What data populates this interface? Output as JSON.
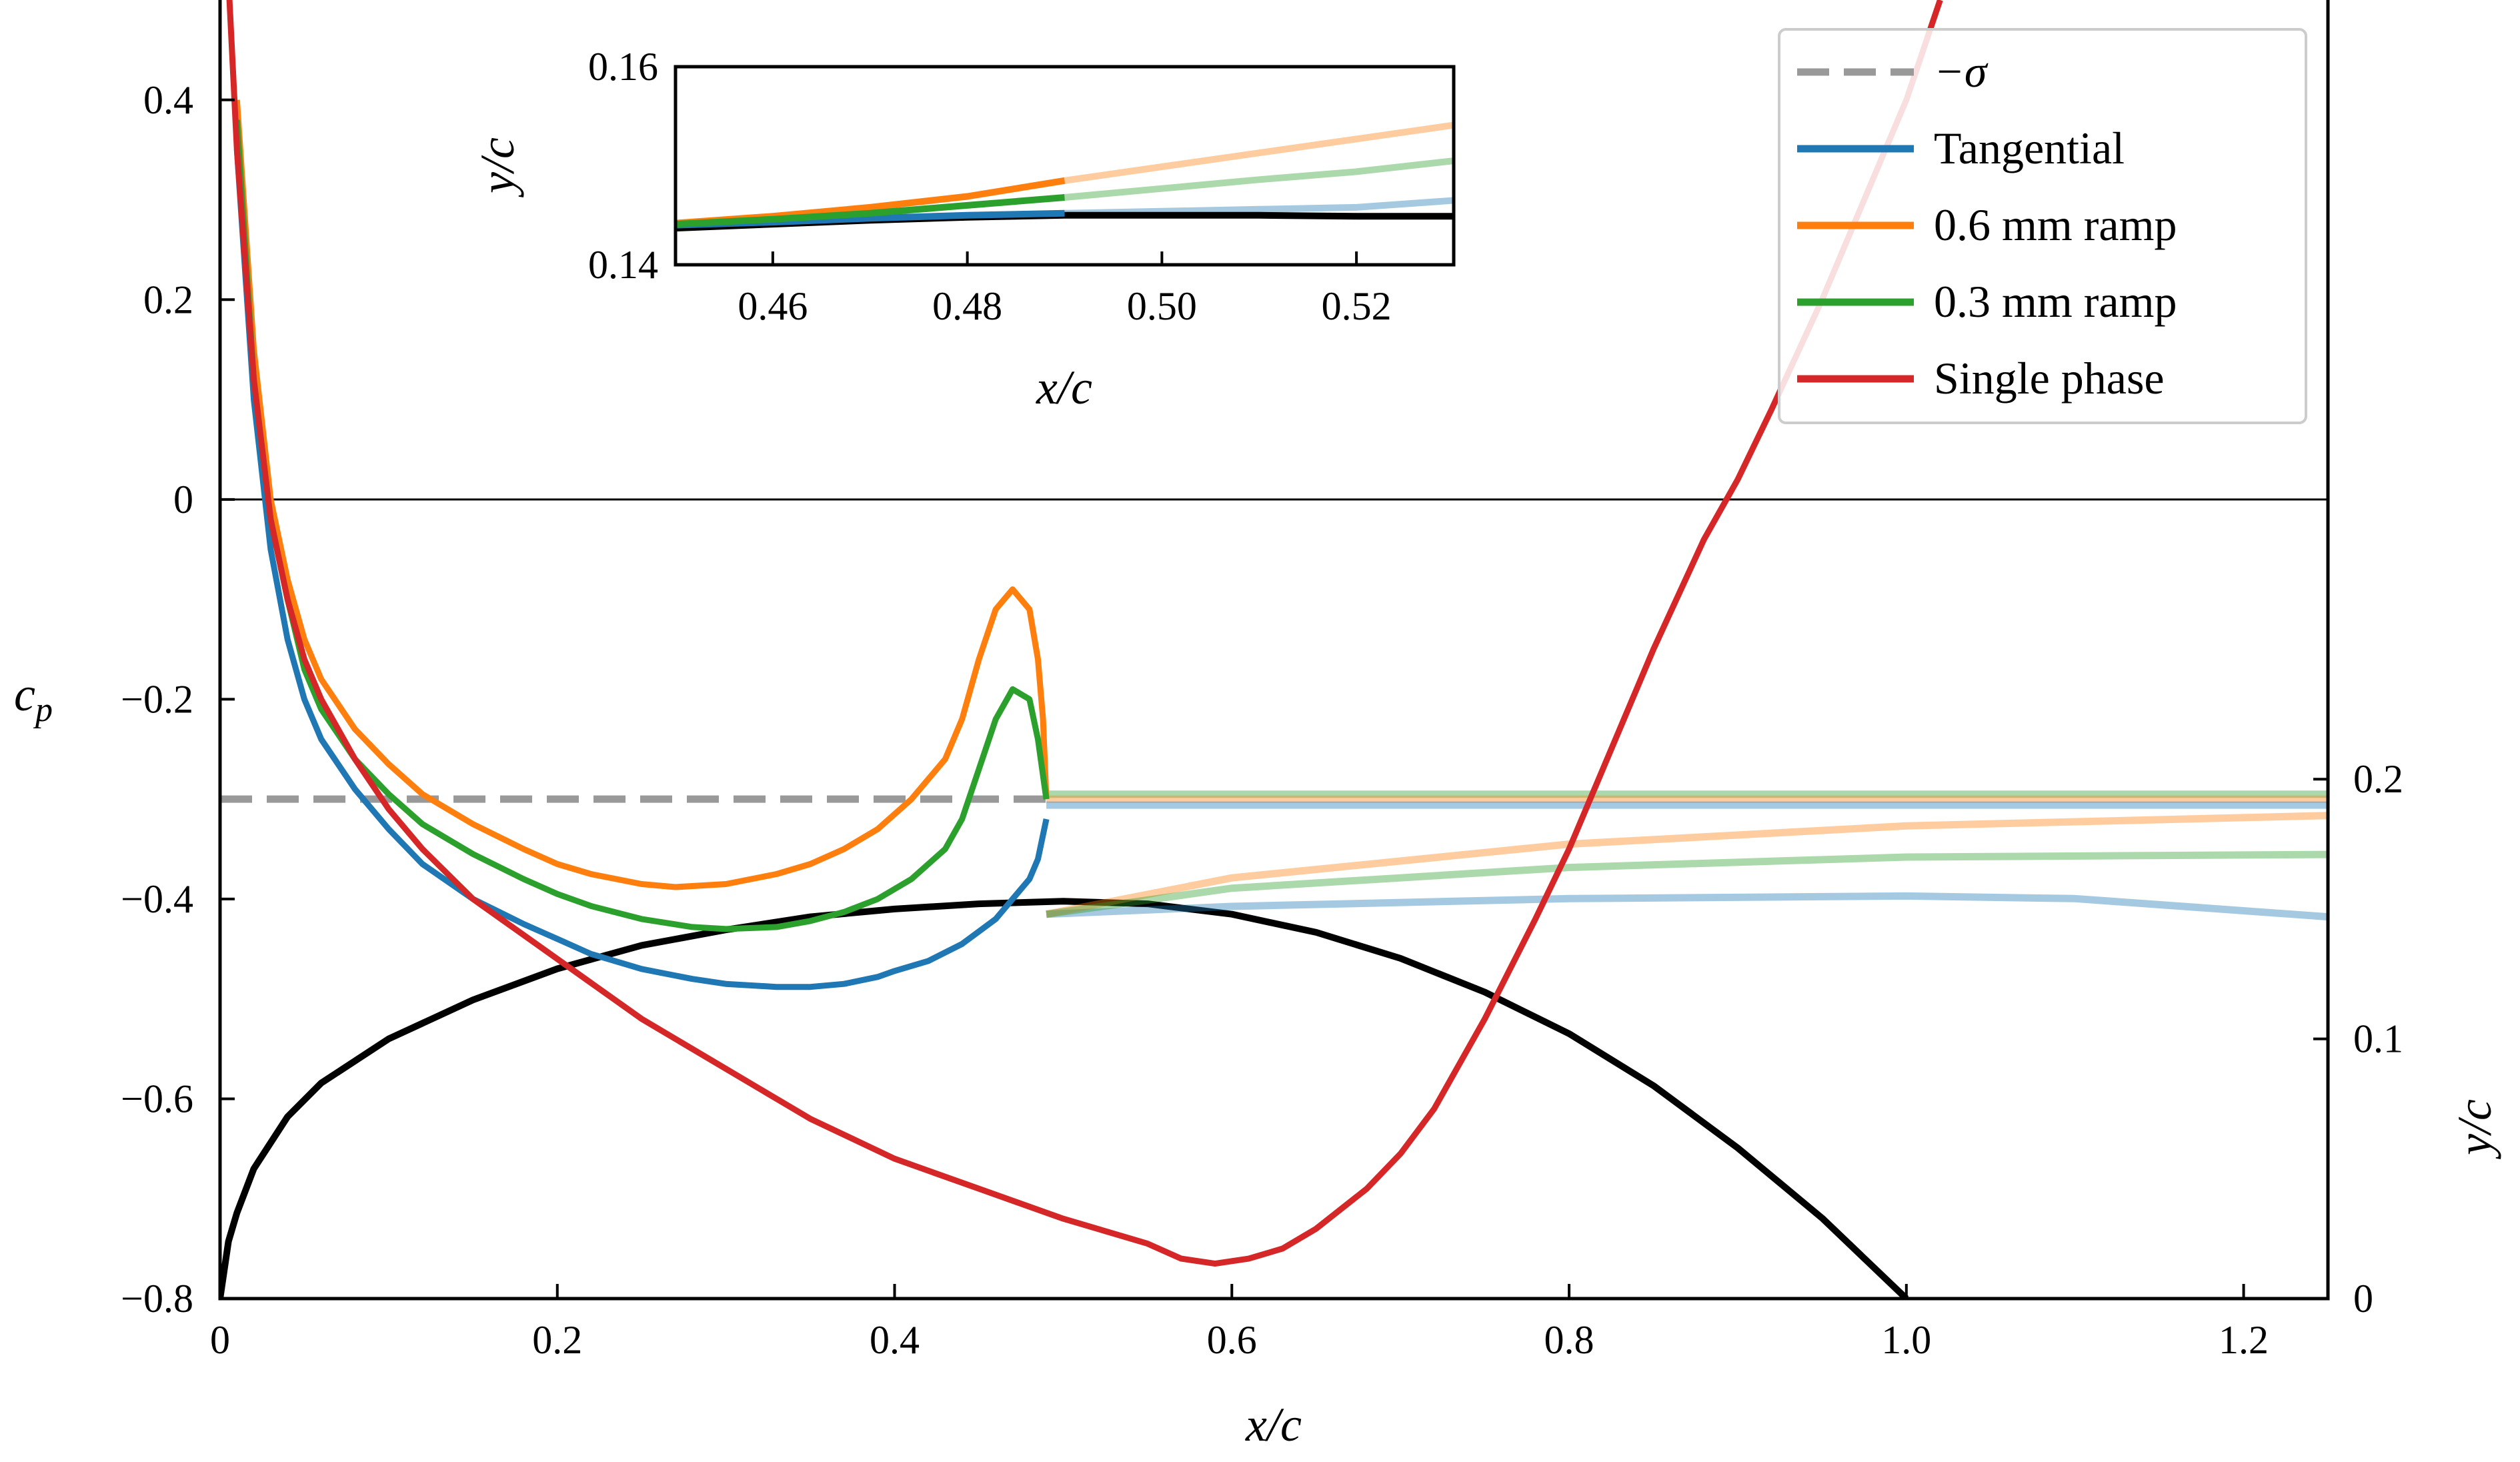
{
  "chart_data": [
    {
      "type": "line",
      "xlabel": "x/c",
      "ylabel": "c_p",
      "ylabel_right": "y/c",
      "xlim": [
        0,
        1.25
      ],
      "ylim": [
        -0.8,
        0.5
      ],
      "ylim_right": [
        0,
        0.5
      ],
      "x_ticks": [
        0,
        0.2,
        0.4,
        0.6,
        0.8,
        1.0,
        1.2
      ],
      "x_tick_labels": [
        "0",
        "0.2",
        "0.4",
        "0.6",
        "0.8",
        "1.0",
        "1.2"
      ],
      "y_ticks": [
        -0.8,
        -0.6,
        -0.4,
        -0.2,
        0,
        0.2,
        0.4
      ],
      "y_tick_labels": [
        "−0.8",
        "−0.6",
        "−0.4",
        "−0.2",
        "0",
        "0.2",
        "0.4"
      ],
      "y_right_ticks": [
        0,
        0.1,
        0.2
      ],
      "y_right_tick_labels": [
        "0",
        "0.1",
        "0.2"
      ],
      "grid": false,
      "legend_position": "top-right",
      "zero_line": 0,
      "sigma_line": {
        "name": "−σ",
        "y": -0.3,
        "x_end": 0.49,
        "color": "#999999",
        "dash": true
      },
      "series": [
        {
          "name": "Tangential",
          "color": "#1f77b4",
          "x": [
            0.01,
            0.02,
            0.03,
            0.04,
            0.05,
            0.06,
            0.08,
            0.1,
            0.12,
            0.15,
            0.18,
            0.2,
            0.22,
            0.25,
            0.28,
            0.3,
            0.33,
            0.35,
            0.37,
            0.39,
            0.4,
            0.42,
            0.44,
            0.46,
            0.47,
            0.48,
            0.485,
            0.49
          ],
          "y": [
            0.35,
            0.1,
            -0.05,
            -0.14,
            -0.2,
            -0.24,
            -0.29,
            -0.33,
            -0.365,
            -0.4,
            -0.425,
            -0.44,
            -0.455,
            -0.47,
            -0.48,
            -0.485,
            -0.488,
            -0.488,
            -0.485,
            -0.478,
            -0.472,
            -0.462,
            -0.445,
            -0.42,
            -0.4,
            -0.38,
            -0.36,
            -0.32
          ]
        },
        {
          "name": "0.6 mm ramp",
          "color": "#ff7f0e",
          "x": [
            0.01,
            0.02,
            0.03,
            0.04,
            0.05,
            0.06,
            0.08,
            0.1,
            0.12,
            0.15,
            0.18,
            0.2,
            0.22,
            0.25,
            0.27,
            0.3,
            0.33,
            0.35,
            0.37,
            0.39,
            0.41,
            0.43,
            0.44,
            0.45,
            0.46,
            0.47,
            0.48,
            0.485,
            0.488,
            0.49
          ],
          "y": [
            0.4,
            0.15,
            0.0,
            -0.08,
            -0.14,
            -0.18,
            -0.23,
            -0.265,
            -0.295,
            -0.325,
            -0.35,
            -0.365,
            -0.375,
            -0.385,
            -0.388,
            -0.385,
            -0.375,
            -0.365,
            -0.35,
            -0.33,
            -0.3,
            -0.26,
            -0.22,
            -0.16,
            -0.11,
            -0.09,
            -0.11,
            -0.16,
            -0.22,
            -0.3
          ]
        },
        {
          "name": "0.3 mm ramp",
          "color": "#2ca02c",
          "x": [
            0.01,
            0.02,
            0.03,
            0.04,
            0.05,
            0.06,
            0.08,
            0.1,
            0.12,
            0.15,
            0.18,
            0.2,
            0.22,
            0.25,
            0.28,
            0.3,
            0.33,
            0.35,
            0.37,
            0.39,
            0.41,
            0.43,
            0.44,
            0.45,
            0.46,
            0.47,
            0.48,
            0.485,
            0.49
          ],
          "y": [
            0.38,
            0.12,
            -0.02,
            -0.1,
            -0.17,
            -0.21,
            -0.26,
            -0.295,
            -0.325,
            -0.355,
            -0.38,
            -0.395,
            -0.407,
            -0.42,
            -0.428,
            -0.43,
            -0.428,
            -0.422,
            -0.413,
            -0.4,
            -0.38,
            -0.35,
            -0.32,
            -0.27,
            -0.22,
            -0.19,
            -0.2,
            -0.24,
            -0.3
          ]
        },
        {
          "name": "Single phase",
          "color": "#d62728",
          "x": [
            0.005,
            0.01,
            0.02,
            0.03,
            0.04,
            0.05,
            0.06,
            0.08,
            0.1,
            0.12,
            0.15,
            0.2,
            0.25,
            0.3,
            0.35,
            0.4,
            0.45,
            0.5,
            0.55,
            0.57,
            0.59,
            0.61,
            0.63,
            0.65,
            0.68,
            0.7,
            0.72,
            0.75,
            0.78,
            0.8,
            0.82,
            0.85,
            0.88,
            0.9,
            0.92,
            0.95,
            0.98,
            1.0,
            1.02
          ],
          "y": [
            0.52,
            0.35,
            0.12,
            -0.02,
            -0.1,
            -0.16,
            -0.2,
            -0.26,
            -0.31,
            -0.35,
            -0.4,
            -0.46,
            -0.52,
            -0.57,
            -0.62,
            -0.66,
            -0.69,
            -0.72,
            -0.745,
            -0.76,
            -0.765,
            -0.76,
            -0.75,
            -0.73,
            -0.69,
            -0.655,
            -0.61,
            -0.52,
            -0.42,
            -0.35,
            -0.27,
            -0.15,
            -0.04,
            0.02,
            0.09,
            0.2,
            0.32,
            0.4,
            0.5
          ]
        }
      ],
      "faded_cp": [
        {
          "color": "#2ca02c",
          "x": [
            0.49,
            1.25
          ],
          "y": [
            -0.295,
            -0.295
          ]
        },
        {
          "color": "#ff7f0e",
          "x": [
            0.49,
            1.25
          ],
          "y": [
            -0.3,
            -0.3
          ]
        },
        {
          "color": "#1f77b4",
          "x": [
            0.49,
            1.25
          ],
          "y": [
            -0.306,
            -0.306
          ]
        }
      ],
      "profiles": [
        {
          "name": "hydrofoil",
          "color": "#000000",
          "x": [
            0,
            0.005,
            0.01,
            0.02,
            0.04,
            0.06,
            0.1,
            0.15,
            0.2,
            0.25,
            0.3,
            0.35,
            0.4,
            0.45,
            0.5,
            0.55,
            0.6,
            0.65,
            0.7,
            0.75,
            0.8,
            0.85,
            0.9,
            0.95,
            1.0
          ],
          "y": [
            0,
            0.022,
            0.033,
            0.05,
            0.07,
            0.083,
            0.1,
            0.115,
            0.127,
            0.136,
            0.142,
            0.147,
            0.15,
            0.152,
            0.153,
            0.152,
            0.148,
            0.141,
            0.131,
            0.118,
            0.102,
            0.082,
            0.058,
            0.031,
            0
          ]
        },
        {
          "name": "Tangential",
          "color": "#1f77b4",
          "alpha": 0.4,
          "x": [
            0.49,
            0.6,
            0.8,
            1.0,
            1.1,
            1.25
          ],
          "y": [
            0.148,
            0.151,
            0.154,
            0.155,
            0.154,
            0.147
          ]
        },
        {
          "name": "0.6 mm ramp",
          "color": "#ff7f0e",
          "alpha": 0.4,
          "x": [
            0.49,
            0.6,
            0.8,
            1.0,
            1.25
          ],
          "y": [
            0.148,
            0.162,
            0.175,
            0.182,
            0.186
          ]
        },
        {
          "name": "0.3 mm ramp",
          "color": "#2ca02c",
          "alpha": 0.4,
          "x": [
            0.49,
            0.6,
            0.8,
            1.0,
            1.25
          ],
          "y": [
            0.148,
            0.158,
            0.166,
            0.17,
            0.171
          ]
        }
      ]
    },
    {
      "type": "line",
      "xlabel": "x/c",
      "ylabel": "y/c",
      "xlim": [
        0.45,
        0.53
      ],
      "ylim": [
        0.14,
        0.16
      ],
      "x_ticks": [
        0.46,
        0.48,
        0.5,
        0.52
      ],
      "x_tick_labels": [
        "0.46",
        "0.48",
        "0.50",
        "0.52"
      ],
      "y_ticks": [
        0.14,
        0.16
      ],
      "y_tick_labels": [
        "0.14",
        "0.16"
      ],
      "grid": false,
      "profiles": [
        {
          "color": "#000000",
          "x": [
            0.45,
            0.46,
            0.47,
            0.48,
            0.49,
            0.5,
            0.51,
            0.52,
            0.53
          ],
          "y": [
            0.1437,
            0.1441,
            0.1445,
            0.1448,
            0.145,
            0.145,
            0.145,
            0.1449,
            0.1449
          ]
        },
        {
          "color": "#1f77b4",
          "x": [
            0.45,
            0.46,
            0.47,
            0.48,
            0.49
          ],
          "y": [
            0.144,
            0.1443,
            0.1447,
            0.145,
            0.1452
          ],
          "faded_x": [
            0.49,
            0.5,
            0.51,
            0.52,
            0.53
          ],
          "faded_y": [
            0.1452,
            0.1454,
            0.1456,
            0.1458,
            0.1465
          ]
        },
        {
          "color": "#ff7f0e",
          "x": [
            0.45,
            0.46,
            0.47,
            0.48,
            0.49
          ],
          "y": [
            0.1442,
            0.1449,
            0.1458,
            0.1469,
            0.1485
          ],
          "faded_x": [
            0.49,
            0.5,
            0.51,
            0.52,
            0.53
          ],
          "faded_y": [
            0.1485,
            0.1499,
            0.1513,
            0.1527,
            0.1541
          ]
        },
        {
          "color": "#2ca02c",
          "x": [
            0.45,
            0.46,
            0.47,
            0.48,
            0.49
          ],
          "y": [
            0.1441,
            0.1446,
            0.1452,
            0.146,
            0.1468
          ],
          "faded_x": [
            0.49,
            0.5,
            0.51,
            0.52,
            0.53
          ],
          "faded_y": [
            0.1468,
            0.1477,
            0.1486,
            0.1494,
            0.1505
          ]
        }
      ]
    }
  ],
  "legend": [
    {
      "label": "−σ",
      "color": "#999999",
      "dash": true
    },
    {
      "label": "Tangential",
      "color": "#1f77b4"
    },
    {
      "label": "0.6 mm ramp",
      "color": "#ff7f0e"
    },
    {
      "label": "0.3 mm ramp",
      "color": "#2ca02c"
    },
    {
      "label": "Single phase",
      "color": "#d62728"
    }
  ]
}
